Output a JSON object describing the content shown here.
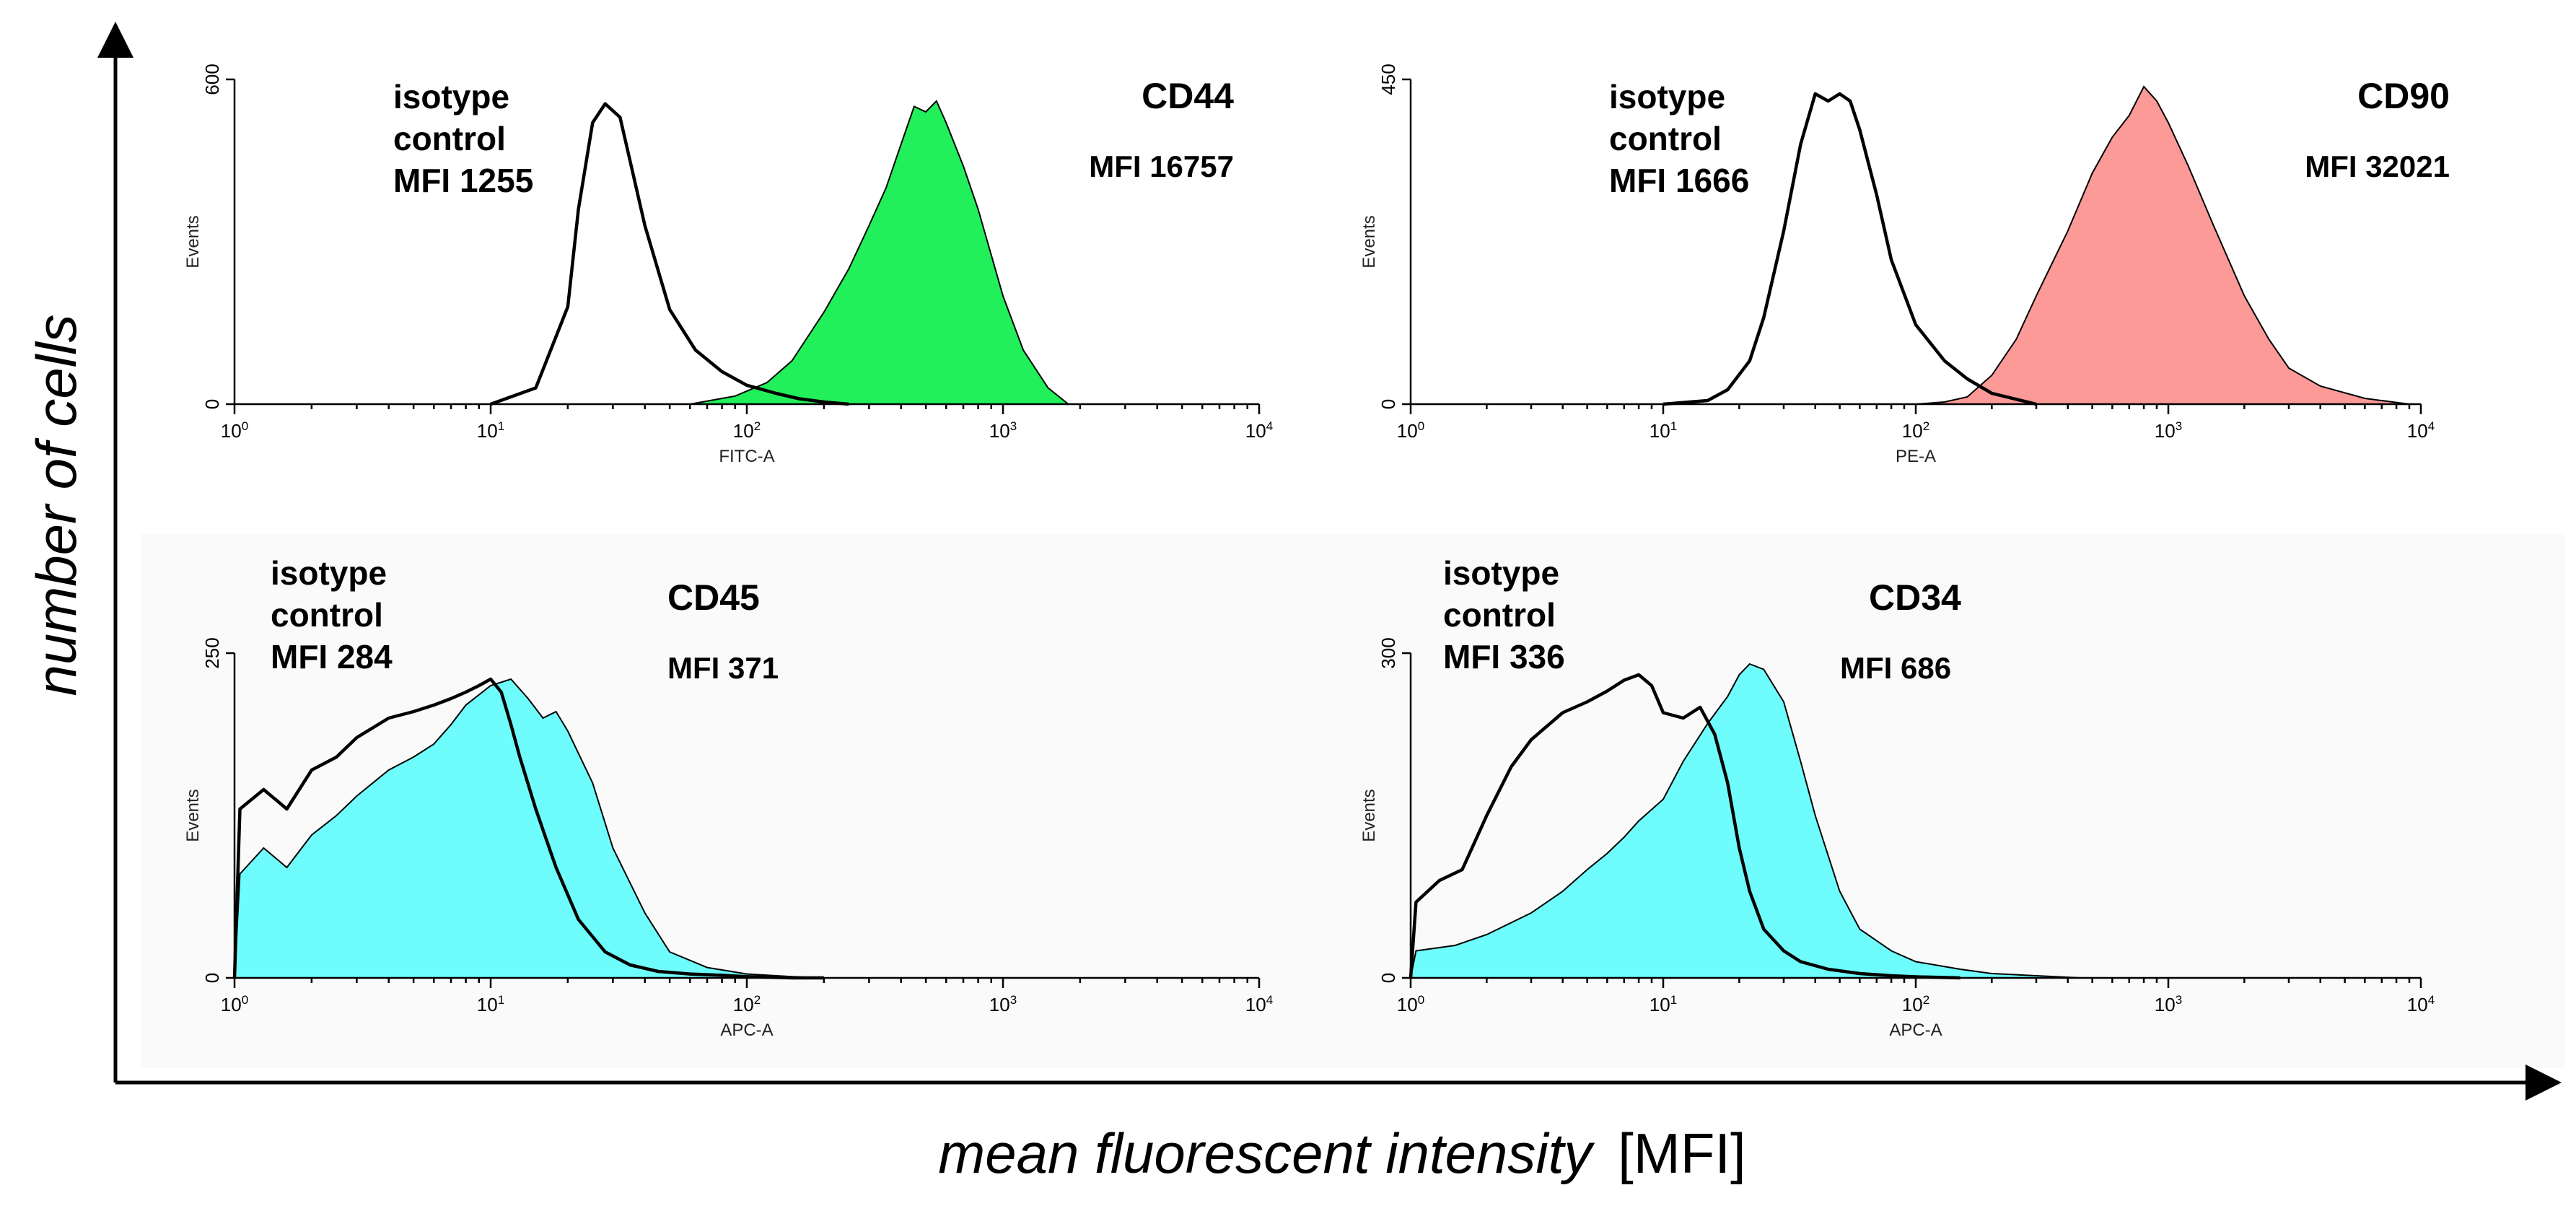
{
  "figure": {
    "y_axis_title": "number of cells",
    "x_axis_title_main": "mean fluorescent intensity",
    "x_axis_title_unit": "[MFI]"
  },
  "colors": {
    "green": "#22f05a",
    "salmon": "#fc9a98",
    "cyan": "#6ffcfc",
    "black": "#000000"
  },
  "chart_data": [
    {
      "type": "area",
      "xscale": "log",
      "xlim": [
        1,
        10000
      ],
      "ylim": [
        0,
        600
      ],
      "yticks": [
        0,
        600
      ],
      "xlabel": "FITC-A",
      "ylabel": "Events",
      "x_ticks": [
        {
          "base": "10",
          "exp": "0"
        },
        {
          "base": "10",
          "exp": "1"
        },
        {
          "base": "10",
          "exp": "2"
        },
        {
          "base": "10",
          "exp": "3"
        },
        {
          "base": "10",
          "exp": "4"
        }
      ],
      "isotype_label": [
        "isotype",
        "control",
        "MFI 1255"
      ],
      "marker": "CD44",
      "marker_mfi": "MFI 16757",
      "fill_color": "#22f05a",
      "series": [
        {
          "name": "isotype control",
          "style": "outline",
          "x": [
            10,
            15,
            20,
            22,
            25,
            28,
            32,
            35,
            40,
            50,
            63,
            80,
            100,
            130,
            160,
            200,
            250
          ],
          "y": [
            0,
            30,
            180,
            360,
            520,
            555,
            530,
            450,
            330,
            175,
            100,
            60,
            35,
            20,
            10,
            4,
            0
          ]
        },
        {
          "name": "CD44",
          "style": "filled",
          "x": [
            60,
            90,
            120,
            150,
            200,
            250,
            300,
            350,
            400,
            450,
            500,
            550,
            600,
            700,
            800,
            1000,
            1200,
            1500,
            1800
          ],
          "y": [
            0,
            15,
            40,
            80,
            170,
            250,
            330,
            400,
            480,
            550,
            540,
            560,
            520,
            440,
            360,
            200,
            100,
            30,
            0
          ]
        }
      ]
    },
    {
      "type": "area",
      "xscale": "log",
      "xlim": [
        1,
        10000
      ],
      "ylim": [
        0,
        450
      ],
      "yticks": [
        0,
        450
      ],
      "xlabel": "PE-A",
      "ylabel": "Events",
      "x_ticks": [
        {
          "base": "10",
          "exp": "0"
        },
        {
          "base": "10",
          "exp": "1"
        },
        {
          "base": "10",
          "exp": "2"
        },
        {
          "base": "10",
          "exp": "3"
        },
        {
          "base": "10",
          "exp": "4"
        }
      ],
      "isotype_label": [
        "isotype",
        "control",
        "MFI 1666"
      ],
      "marker": "CD90",
      "marker_mfi": "MFI 32021",
      "fill_color": "#fc9a98",
      "series": [
        {
          "name": "isotype control",
          "style": "outline",
          "x": [
            10,
            15,
            18,
            22,
            25,
            30,
            35,
            40,
            45,
            50,
            55,
            60,
            70,
            80,
            100,
            130,
            160,
            200,
            300
          ],
          "y": [
            0,
            5,
            20,
            60,
            120,
            240,
            360,
            430,
            420,
            430,
            420,
            380,
            290,
            200,
            110,
            60,
            35,
            15,
            0
          ]
        },
        {
          "name": "CD90",
          "style": "filled",
          "x": [
            100,
            130,
            160,
            200,
            250,
            300,
            400,
            500,
            600,
            700,
            800,
            900,
            1000,
            1200,
            1500,
            2000,
            2500,
            3000,
            4000,
            6000,
            9000
          ],
          "y": [
            0,
            3,
            10,
            40,
            90,
            150,
            240,
            320,
            370,
            400,
            440,
            420,
            390,
            330,
            250,
            150,
            90,
            50,
            25,
            8,
            0
          ]
        }
      ]
    },
    {
      "type": "area",
      "xscale": "log",
      "xlim": [
        1,
        10000
      ],
      "ylim": [
        0,
        250
      ],
      "yticks": [
        0,
        250
      ],
      "xlabel": "APC-A",
      "ylabel": "Events",
      "x_ticks": [
        {
          "base": "10",
          "exp": "0"
        },
        {
          "base": "10",
          "exp": "1"
        },
        {
          "base": "10",
          "exp": "2"
        },
        {
          "base": "10",
          "exp": "3"
        },
        {
          "base": "10",
          "exp": "4"
        }
      ],
      "isotype_label": [
        "isotype",
        "control",
        "MFI 284"
      ],
      "marker": "CD45",
      "marker_mfi": "MFI 371",
      "fill_color": "#6ffcfc",
      "series": [
        {
          "name": "isotype control",
          "style": "outline",
          "x": [
            1,
            1.05,
            1.3,
            1.6,
            2,
            2.5,
            3,
            4,
            5,
            6,
            7,
            8,
            9,
            10,
            11,
            12,
            13,
            15,
            18,
            22,
            28,
            35,
            45,
            60,
            80,
            100,
            150,
            200
          ],
          "y": [
            0,
            130,
            145,
            130,
            160,
            170,
            185,
            200,
            205,
            210,
            215,
            220,
            225,
            230,
            220,
            195,
            170,
            130,
            85,
            45,
            20,
            10,
            5,
            3,
            2,
            1,
            0,
            0
          ]
        },
        {
          "name": "CD45",
          "style": "filled",
          "x": [
            1,
            1.05,
            1.3,
            1.6,
            2,
            2.5,
            3,
            4,
            5,
            6,
            7,
            8,
            10,
            12,
            14,
            16,
            18,
            20,
            25,
            30,
            40,
            50,
            70,
            100,
            150,
            200
          ],
          "y": [
            0,
            80,
            100,
            85,
            110,
            125,
            140,
            160,
            170,
            180,
            195,
            210,
            225,
            230,
            215,
            200,
            205,
            190,
            150,
            100,
            50,
            20,
            8,
            3,
            1,
            0
          ]
        }
      ]
    },
    {
      "type": "area",
      "xscale": "log",
      "xlim": [
        1,
        10000
      ],
      "ylim": [
        0,
        300
      ],
      "yticks": [
        0,
        300
      ],
      "xlabel": "APC-A",
      "ylabel": "Events",
      "x_ticks": [
        {
          "base": "10",
          "exp": "0"
        },
        {
          "base": "10",
          "exp": "1"
        },
        {
          "base": "10",
          "exp": "2"
        },
        {
          "base": "10",
          "exp": "3"
        },
        {
          "base": "10",
          "exp": "4"
        }
      ],
      "isotype_label": [
        "isotype",
        "control",
        "MFI 336"
      ],
      "marker": "CD34",
      "marker_mfi": "MFI 686",
      "fill_color": "#6ffcfc",
      "series": [
        {
          "name": "isotype control",
          "style": "outline",
          "x": [
            1,
            1.05,
            1.3,
            1.6,
            2,
            2.5,
            3,
            4,
            5,
            6,
            7,
            8,
            9,
            10,
            12,
            14,
            16,
            18,
            20,
            22,
            25,
            30,
            35,
            45,
            60,
            80,
            100,
            150
          ],
          "y": [
            0,
            70,
            90,
            100,
            150,
            195,
            220,
            245,
            255,
            265,
            275,
            280,
            270,
            245,
            240,
            250,
            225,
            180,
            120,
            80,
            45,
            25,
            15,
            8,
            4,
            2,
            1,
            0
          ]
        },
        {
          "name": "CD34",
          "style": "filled",
          "x": [
            1,
            1.05,
            1.5,
            2,
            3,
            4,
            5,
            6,
            7,
            8,
            10,
            12,
            15,
            18,
            20,
            22,
            25,
            30,
            35,
            40,
            50,
            60,
            80,
            100,
            150,
            200,
            300,
            450
          ],
          "y": [
            0,
            25,
            30,
            40,
            60,
            80,
            100,
            115,
            130,
            145,
            165,
            200,
            235,
            260,
            280,
            290,
            285,
            255,
            200,
            150,
            80,
            45,
            25,
            15,
            8,
            4,
            2,
            0
          ]
        }
      ]
    }
  ]
}
